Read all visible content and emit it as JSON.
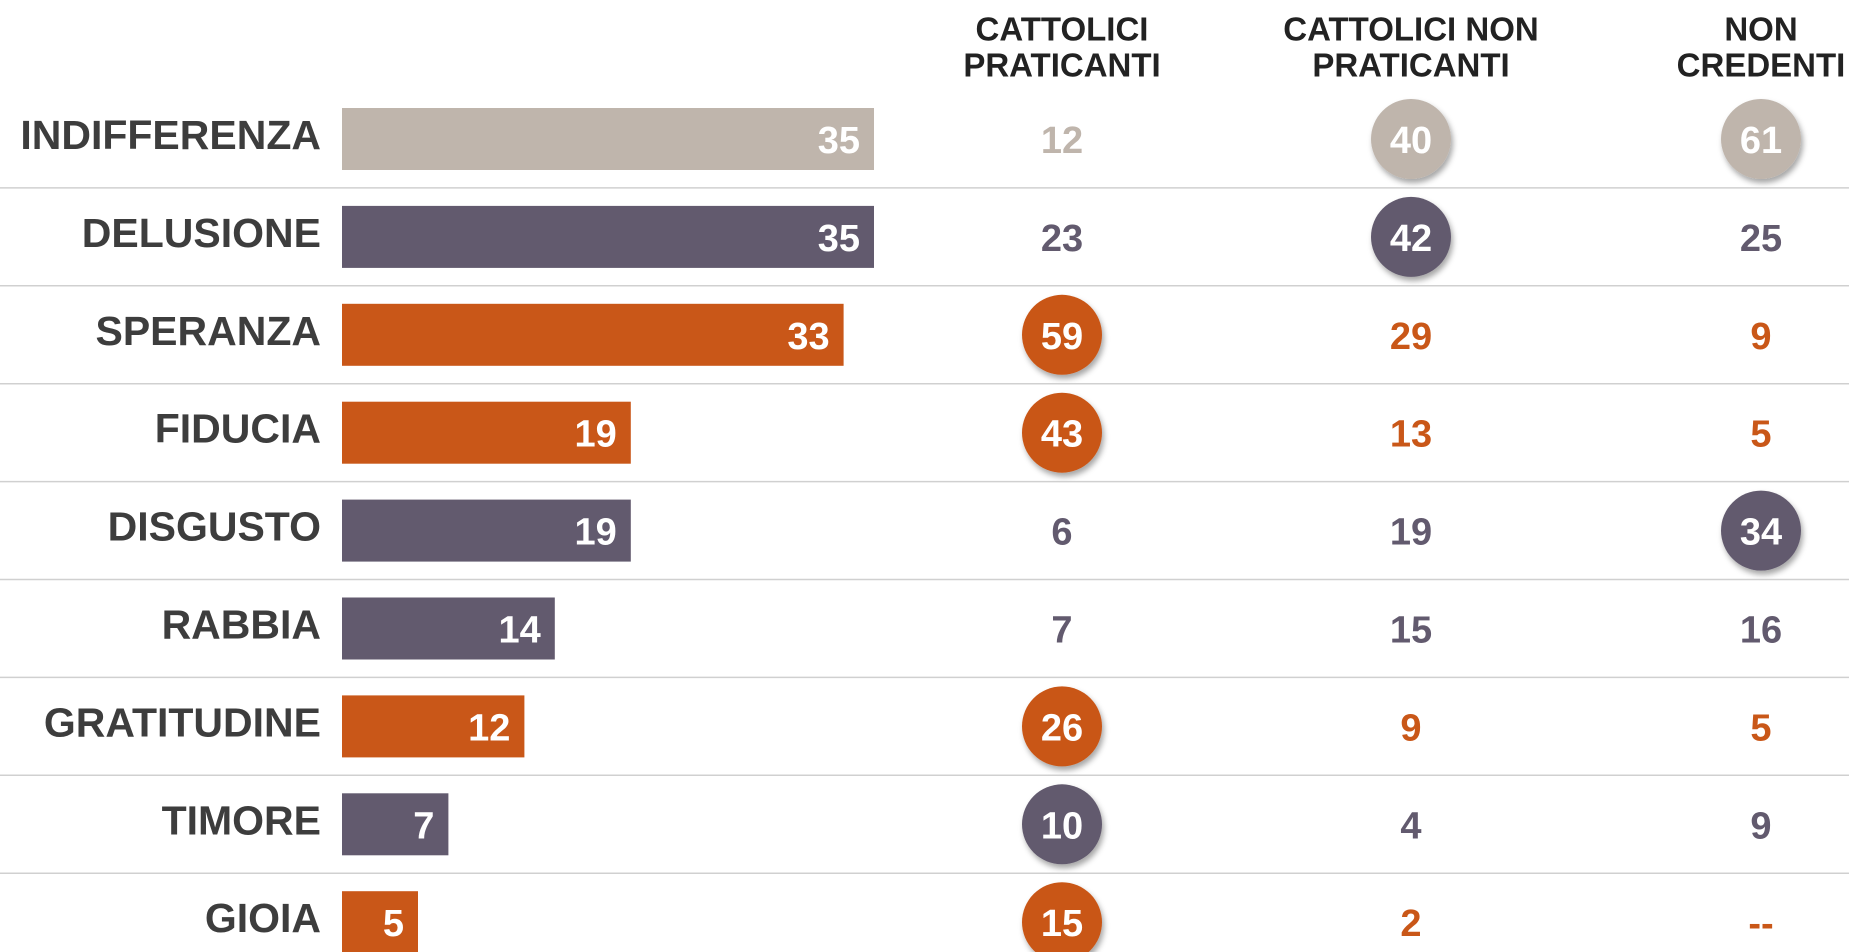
{
  "chart_data": {
    "type": "bar",
    "categories": [
      "INDIFFERENZA",
      "DELUSIONE",
      "SPERANZA",
      "FIDUCIA",
      "DISGUSTO",
      "RABBIA",
      "GRATITUDINE",
      "TIMORE",
      "GIOIA"
    ],
    "values": [
      35,
      35,
      33,
      19,
      19,
      14,
      12,
      7,
      5
    ],
    "colors": [
      "#bfb5ac",
      "#625a6e",
      "#c95718",
      "#c95718",
      "#625a6e",
      "#625a6e",
      "#c95718",
      "#625a6e",
      "#c95718"
    ]
  },
  "table": {
    "columns": [
      [
        "CATTOLICI",
        "PRATICANTI"
      ],
      [
        "CATTOLICI NON",
        "PRATICANTI"
      ],
      [
        "NON",
        "CREDENTI"
      ]
    ],
    "rows": [
      [
        12,
        40,
        61
      ],
      [
        23,
        42,
        25
      ],
      [
        59,
        29,
        9
      ],
      [
        43,
        13,
        5
      ],
      [
        6,
        19,
        34
      ],
      [
        7,
        15,
        16
      ],
      [
        26,
        9,
        5
      ],
      [
        10,
        4,
        9
      ],
      [
        15,
        2,
        "--"
      ]
    ],
    "highlight": [
      [
        false,
        true,
        true
      ],
      [
        false,
        true,
        false
      ],
      [
        true,
        false,
        false
      ],
      [
        true,
        false,
        false
      ],
      [
        false,
        false,
        true
      ],
      [
        false,
        false,
        false
      ],
      [
        true,
        false,
        false
      ],
      [
        true,
        false,
        false
      ],
      [
        true,
        false,
        false
      ]
    ]
  }
}
